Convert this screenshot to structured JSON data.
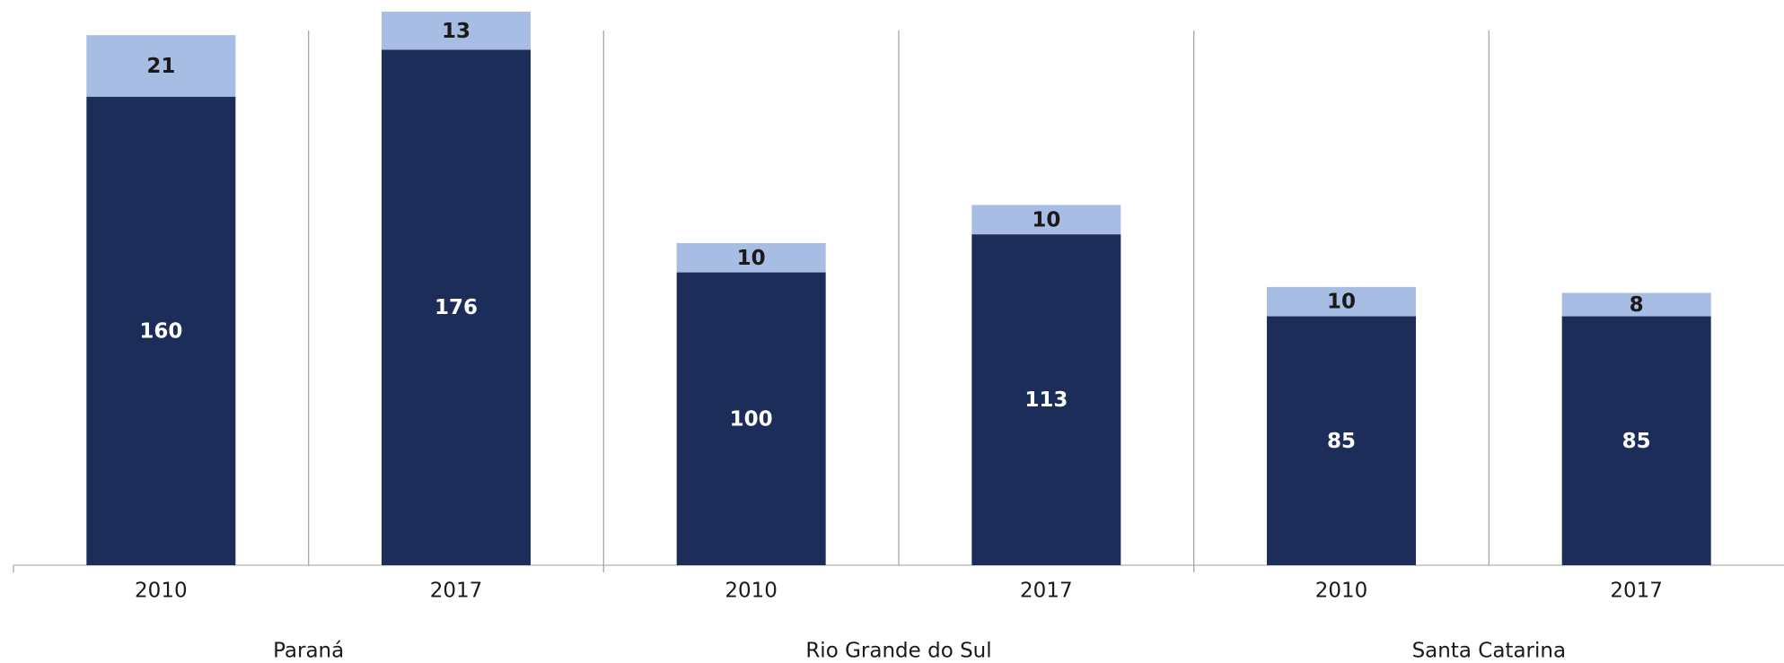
{
  "chart_data": {
    "type": "stacked_bar",
    "categories": [
      "2010",
      "2017",
      "2010",
      "2017",
      "2010",
      "2017"
    ],
    "groups": [
      "Paraná",
      "Rio Grande do Sul",
      "Santa Catarina"
    ],
    "series": [
      {
        "color": "#1d2d5a",
        "label_color": "#ffffff",
        "values": [
          160,
          176,
          100,
          113,
          85,
          85
        ]
      },
      {
        "color": "#a7bde3",
        "label_color": "#1a1a1a",
        "values": [
          21,
          13,
          10,
          10,
          10,
          8
        ]
      }
    ],
    "ylim": [
      0,
      193
    ]
  }
}
